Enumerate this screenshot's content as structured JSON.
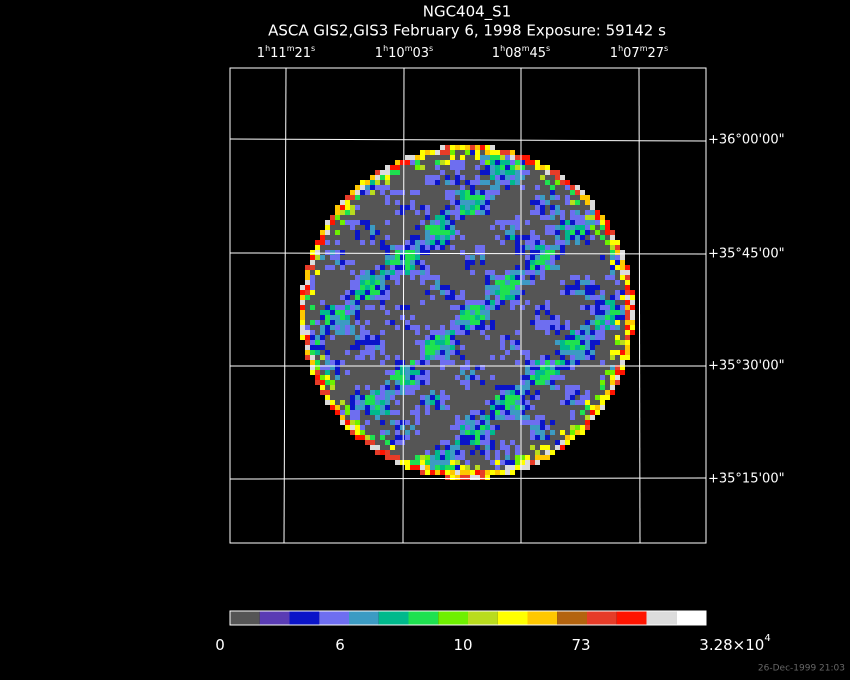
{
  "header": {
    "title": "NGC404_S1",
    "subtitle": "ASCA GIS2,GIS3 February 6, 1998 Exposure: 59142 s"
  },
  "ra_labels": [
    [
      "1",
      "h",
      "11",
      "m",
      "21",
      "s"
    ],
    [
      "1",
      "h",
      "10",
      "m",
      "03",
      "s"
    ],
    [
      "1",
      "h",
      "08",
      "m",
      "45",
      "s"
    ],
    [
      "1",
      "h",
      "07",
      "m",
      "27",
      "s"
    ]
  ],
  "dec_labels": [
    "+36°00'00\"",
    "+35°45'00\"",
    "+35°30'00\"",
    "+35°15'00\""
  ],
  "colorbar": {
    "colors": [
      "#555555",
      "#5a3cb4",
      "#0a14c8",
      "#6e6ef0",
      "#3c9bc3",
      "#00b98c",
      "#1ee150",
      "#6ef000",
      "#b9dc1e",
      "#ffff00",
      "#ffc800",
      "#b4640f",
      "#e63c28",
      "#ff1400",
      "#dcdcdc",
      "#ffffff"
    ],
    "labels": [
      [
        "0"
      ],
      [
        "6"
      ],
      [
        "10"
      ],
      [
        "73"
      ],
      [
        "3.28×10",
        "4"
      ]
    ]
  },
  "footer": {
    "timestamp": "26-Dec-1999 21:03"
  }
}
